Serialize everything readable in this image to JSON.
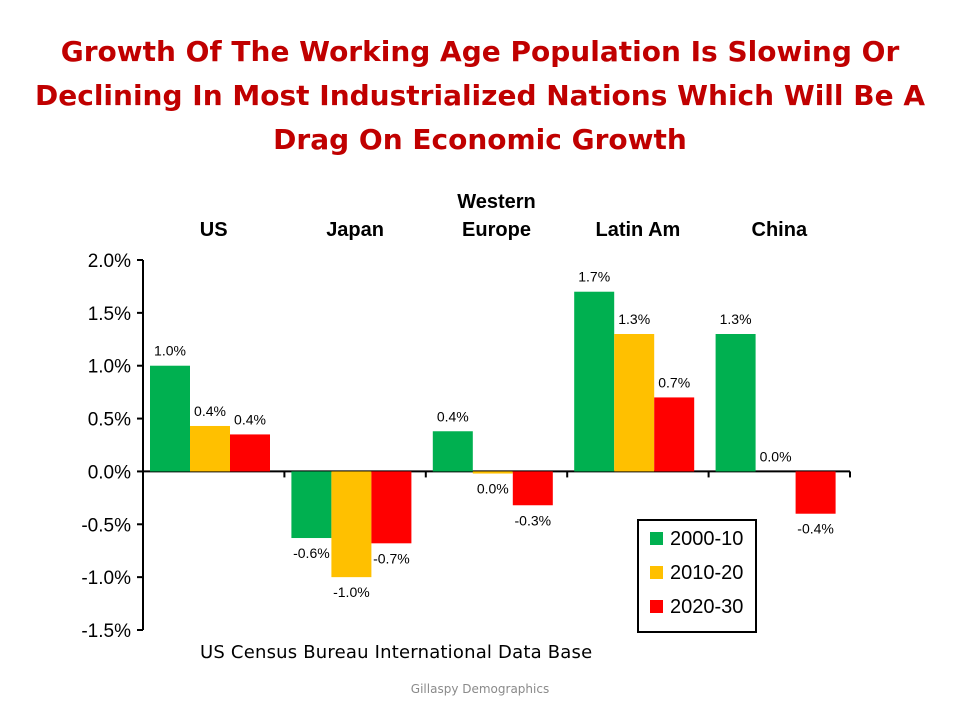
{
  "title": "Growth Of The Working Age Population Is Slowing Or Declining In Most Industrialized Nations Which Will Be A Drag On Economic Growth",
  "source": "US Census Bureau International Data Base",
  "credit": "Gillaspy Demographics",
  "chart_data": {
    "type": "bar",
    "categories": [
      [
        "US"
      ],
      [
        "Japan"
      ],
      [
        "Western",
        "Europe"
      ],
      [
        "Latin Am"
      ],
      [
        "China"
      ]
    ],
    "series": [
      {
        "name": "2000-10",
        "color": "#00b050",
        "values": [
          1.0,
          -0.63,
          0.38,
          1.7,
          1.3
        ],
        "labels": [
          "1.0%",
          "-0.6%",
          "0.4%",
          "1.7%",
          "1.3%"
        ]
      },
      {
        "name": "2010-20",
        "color": "#ffc000",
        "values": [
          0.43,
          -1.0,
          -0.02,
          1.3,
          0.0
        ],
        "labels": [
          "0.4%",
          "-1.0%",
          "0.0%",
          "1.3%",
          "0.0%"
        ]
      },
      {
        "name": "2020-30",
        "color": "#ff0000",
        "values": [
          0.35,
          -0.68,
          -0.32,
          0.7,
          -0.4
        ],
        "labels": [
          "0.4%",
          "-0.7%",
          "-0.3%",
          "0.7%",
          "-0.4%"
        ]
      }
    ],
    "yticks": [
      "2.0%",
      "1.5%",
      "1.0%",
      "0.5%",
      "0.0%",
      "-0.5%",
      "-1.0%",
      "-1.5%"
    ],
    "ylim": [
      -1.5,
      2.0
    ],
    "legend_position": "bottom-right"
  }
}
